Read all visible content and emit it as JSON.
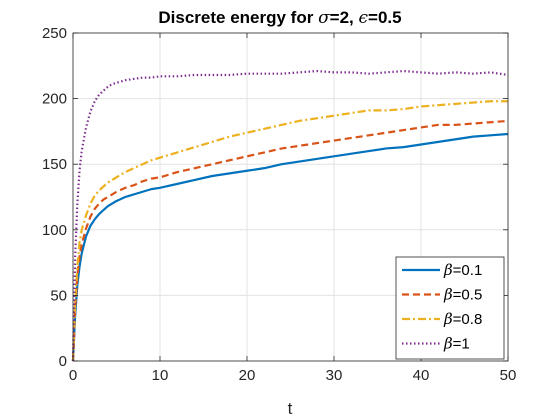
{
  "chart_data": {
    "type": "line",
    "title": {
      "prefix": "Discrete energy for ",
      "sigma_symbol": "σ",
      "sigma_value": "=2, ",
      "eps_symbol": "ϵ",
      "eps_value": "=0.5"
    },
    "xlabel": "t",
    "ylabel": "",
    "xlim": [
      0,
      50
    ],
    "ylim": [
      0,
      250
    ],
    "xticks": [
      0,
      10,
      20,
      30,
      40,
      50
    ],
    "yticks": [
      0,
      50,
      100,
      150,
      200,
      250
    ],
    "grid": true,
    "legend_position": "bottom-right",
    "series": [
      {
        "legend_symbol": "β",
        "legend_value": "=0.1",
        "color": "#0072BD",
        "style": "solid",
        "x": [
          0,
          0.25,
          0.5,
          0.75,
          1,
          1.5,
          2,
          2.5,
          3,
          3.5,
          4,
          4.5,
          5,
          6,
          7,
          8,
          9,
          10,
          12,
          14,
          16,
          18,
          20,
          22,
          24,
          26,
          28,
          30,
          32,
          34,
          36,
          38,
          40,
          42,
          44,
          46,
          48,
          50
        ],
        "y": [
          0,
          35,
          58,
          72,
          82,
          95,
          103,
          108,
          112,
          115,
          118,
          120,
          122,
          125,
          127,
          129,
          131,
          132,
          135,
          138,
          141,
          143,
          145,
          147,
          150,
          152,
          154,
          156,
          158,
          160,
          162,
          163,
          165,
          167,
          169,
          171,
          172,
          173
        ]
      },
      {
        "legend_symbol": "β",
        "legend_value": "=0.5",
        "color": "#D95319",
        "style": "dashed",
        "x": [
          0,
          0.25,
          0.5,
          0.75,
          1,
          1.5,
          2,
          2.5,
          3,
          3.5,
          4,
          4.5,
          5,
          6,
          7,
          8,
          9,
          10,
          12,
          14,
          16,
          18,
          20,
          22,
          24,
          26,
          28,
          30,
          32,
          34,
          36,
          38,
          40,
          42,
          44,
          46,
          48,
          50
        ],
        "y": [
          0,
          40,
          65,
          80,
          89,
          101,
          110,
          116,
          120,
          123,
          125,
          127,
          129,
          132,
          134,
          137,
          139,
          140,
          144,
          147,
          150,
          153,
          156,
          159,
          162,
          164,
          166,
          168,
          170,
          172,
          174,
          176,
          178,
          180,
          180,
          181,
          182,
          183
        ]
      },
      {
        "legend_symbol": "β",
        "legend_value": "=0.8",
        "color": "#EDB120",
        "style": "dashdot",
        "x": [
          0,
          0.25,
          0.5,
          0.75,
          1,
          1.5,
          2,
          2.5,
          3,
          3.5,
          4,
          4.5,
          5,
          6,
          7,
          8,
          9,
          10,
          12,
          14,
          16,
          18,
          20,
          22,
          24,
          26,
          28,
          30,
          32,
          34,
          36,
          38,
          40,
          42,
          44,
          46,
          48,
          50
        ],
        "y": [
          0,
          45,
          72,
          90,
          100,
          111,
          120,
          126,
          130,
          133,
          136,
          138,
          140,
          144,
          147,
          150,
          153,
          155,
          159,
          163,
          167,
          171,
          174,
          177,
          180,
          183,
          185,
          187,
          189,
          191,
          191,
          192,
          194,
          195,
          196,
          197,
          198,
          198
        ]
      },
      {
        "legend_symbol": "β",
        "legend_value": "=1",
        "color": "#7E2F8E",
        "style": "dotted",
        "x": [
          0,
          0.25,
          0.5,
          0.75,
          1,
          1.5,
          2,
          2.5,
          3,
          3.5,
          4,
          4.5,
          5,
          6,
          7,
          8,
          9,
          10,
          12,
          14,
          16,
          18,
          20,
          22,
          24,
          26,
          28,
          30,
          32,
          34,
          36,
          38,
          40,
          42,
          44,
          46,
          48,
          50
        ],
        "y": [
          0,
          80,
          120,
          145,
          160,
          178,
          190,
          198,
          203,
          206,
          209,
          211,
          212,
          214,
          215,
          216,
          216,
          217,
          217,
          218,
          218,
          218,
          219,
          219,
          219,
          220,
          221,
          220,
          220,
          219,
          220,
          221,
          220,
          219,
          220,
          219,
          220,
          218
        ]
      }
    ]
  }
}
